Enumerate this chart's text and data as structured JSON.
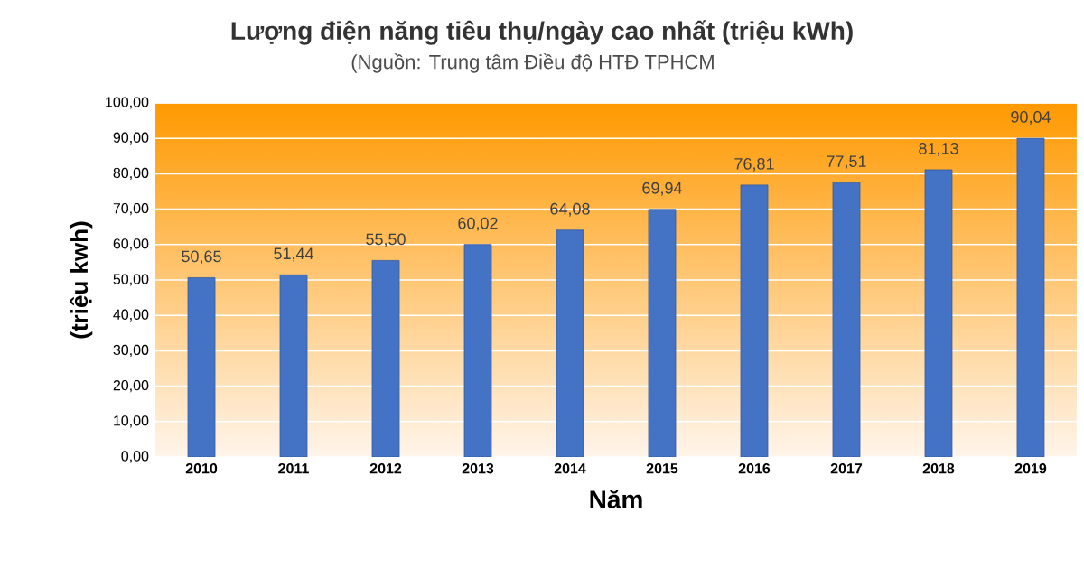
{
  "chart_data": {
    "type": "bar",
    "title": "Lượng điện năng tiêu thụ/ngày cao nhất (triệu kWh)",
    "subtitle": "(Nguồn: Trung tâm Điều độ HTĐ TPHCM",
    "xlabel": "Năm",
    "ylabel": "(triệu kwh)",
    "categories": [
      "2010",
      "2011",
      "2012",
      "2013",
      "2014",
      "2015",
      "2016",
      "2017",
      "2018",
      "2019"
    ],
    "values": [
      50.65,
      51.44,
      55.5,
      60.02,
      64.08,
      69.94,
      76.81,
      77.51,
      81.13,
      90.04
    ],
    "value_labels": [
      "50,65",
      "51,44",
      "55,50",
      "60,02",
      "64,08",
      "69,94",
      "76,81",
      "77,51",
      "81,13",
      "90,04"
    ],
    "color": "#4472c4",
    "ylim": [
      0,
      100
    ],
    "yticks": [
      {
        "value": 0,
        "label": "0,00"
      },
      {
        "value": 10,
        "label": "10,00"
      },
      {
        "value": 20,
        "label": "20,00"
      },
      {
        "value": 30,
        "label": "30,00"
      },
      {
        "value": 40,
        "label": "40,00"
      },
      {
        "value": 50,
        "label": "50,00"
      },
      {
        "value": 60,
        "label": "60,00"
      },
      {
        "value": 70,
        "label": "70,00"
      },
      {
        "value": 80,
        "label": "80,00"
      },
      {
        "value": 90,
        "label": "90,00"
      },
      {
        "value": 100,
        "label": "100,00"
      }
    ],
    "grid": "y"
  }
}
